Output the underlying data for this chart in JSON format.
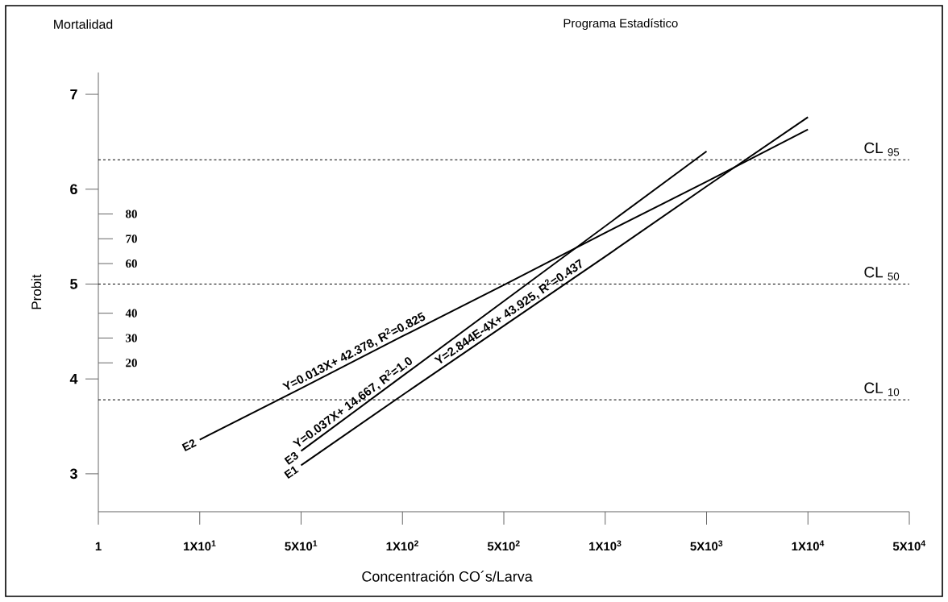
{
  "chart_data": {
    "type": "line",
    "title": "Programa Estadístico",
    "xlabel": "Concentración CO´s/Larva",
    "ylabel": "Probit",
    "categories": [
      "1",
      "1X10$^{1}$",
      "5X10$^{1}$",
      "1X10$^{2}$",
      "5X10$^{2}$",
      "1X10$^{3}$",
      "5X10$^{3}$",
      "1X10$^{4}$",
      "5X10$^{4}$"
    ],
    "ylim": [
      2.6,
      7.23
    ],
    "yticks": [
      3,
      4,
      5,
      6,
      7
    ],
    "y2lim": [
      -40,
      137
    ],
    "y2ticks": [
      20,
      30,
      40,
      60,
      70,
      80
    ],
    "series": [
      {
        "name": "E2",
        "color": "#000000",
        "values": [
          null,
          3.36,
          3.9,
          4.45,
          4.99,
          5.54,
          6.08,
          6.63,
          null
        ]
      },
      {
        "name": "E3",
        "color": "#000000",
        "values": [
          null,
          null,
          3.24,
          4.03,
          4.82,
          5.61,
          6.4,
          null,
          null
        ]
      },
      {
        "name": "E1",
        "color": "#000000",
        "values": [
          null,
          null,
          3.09,
          3.83,
          4.56,
          5.29,
          6.03,
          6.76,
          null
        ]
      }
    ],
    "ref_lines": [
      {
        "axis": "y",
        "value": 6.31,
        "label": "CL $_{95}$",
        "line_style": "dashed",
        "color": "#000000"
      },
      {
        "axis": "y",
        "value": 5.0,
        "label": "CL $_{50}$",
        "line_style": "dashed",
        "color": "#000000"
      },
      {
        "axis": "y",
        "value": 3.78,
        "label": "CL $_{10}$",
        "line_style": "dashed",
        "color": "#000000"
      }
    ],
    "annotations": [
      "Y=0.013X+ 42.378, R$^{2}$=0.825",
      "Y=0.037X+ 14.667, R$^{2}$=1.0",
      "Y=2.844E-4X+ 43.925, R$^{2}$=0.437",
      "Mortalidad"
    ],
    "line_style": "solid"
  }
}
